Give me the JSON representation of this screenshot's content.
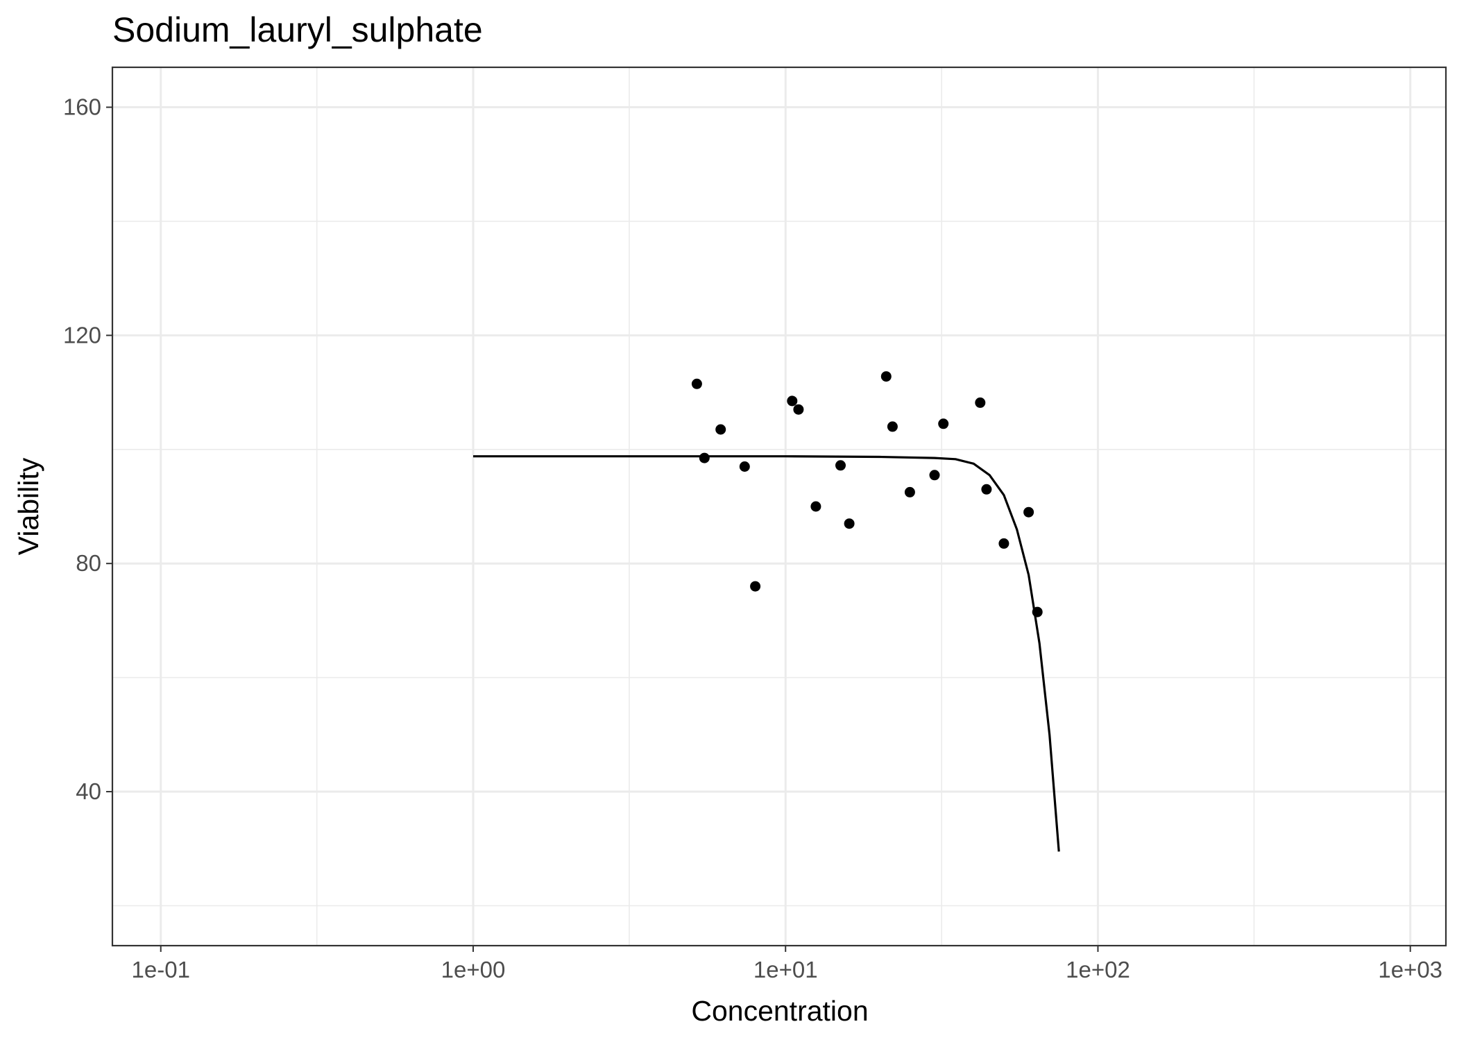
{
  "chart_data": {
    "type": "scatter",
    "title": "Sodium_lauryl_sulphate",
    "xlabel": "Concentration",
    "ylabel": "Viability",
    "x_scale": "log10",
    "xlim": [
      0.07,
      1300
    ],
    "ylim": [
      13,
      167
    ],
    "x_ticks": [
      0.1,
      1,
      10,
      100,
      1000
    ],
    "x_tick_labels": [
      "1e-01",
      "1e+00",
      "1e+01",
      "1e+02",
      "1e+03"
    ],
    "x_minor_ticks": [
      0.316,
      3.16,
      31.6,
      316
    ],
    "y_ticks": [
      40,
      80,
      120,
      160
    ],
    "y_tick_labels": [
      "40",
      "80",
      "120",
      "160"
    ],
    "y_minor_ticks": [
      20,
      60,
      100,
      140
    ],
    "grid": true,
    "legend": "none",
    "colors": {
      "points": "#000000",
      "curve": "#000000",
      "grid": "#ebebeb",
      "panel_border": "#333333",
      "tick_text": "#4d4d4d"
    },
    "series": [
      {
        "type": "points",
        "x": [
          5.2,
          5.5,
          6.2,
          7.4,
          8.0,
          10.5,
          11.0,
          12.5,
          15.0,
          16.0,
          21.0,
          22.0,
          25.0,
          30.0,
          32.0,
          42.0,
          44.0,
          50.0,
          60.0,
          64.0
        ],
        "y": [
          111.5,
          98.5,
          103.5,
          97,
          76,
          108.5,
          107,
          90,
          97.2,
          87,
          112.8,
          104,
          92.5,
          95.5,
          104.5,
          108.2,
          93,
          83.5,
          89,
          71.5
        ]
      },
      {
        "type": "line",
        "x": [
          1,
          2,
          5,
          10,
          20,
          30,
          35,
          40,
          45,
          50,
          55,
          60,
          65,
          70,
          75
        ],
        "y": [
          98.8,
          98.8,
          98.8,
          98.8,
          98.7,
          98.5,
          98.3,
          97.5,
          95.5,
          92,
          86,
          78,
          66,
          50,
          29.5
        ]
      }
    ]
  }
}
